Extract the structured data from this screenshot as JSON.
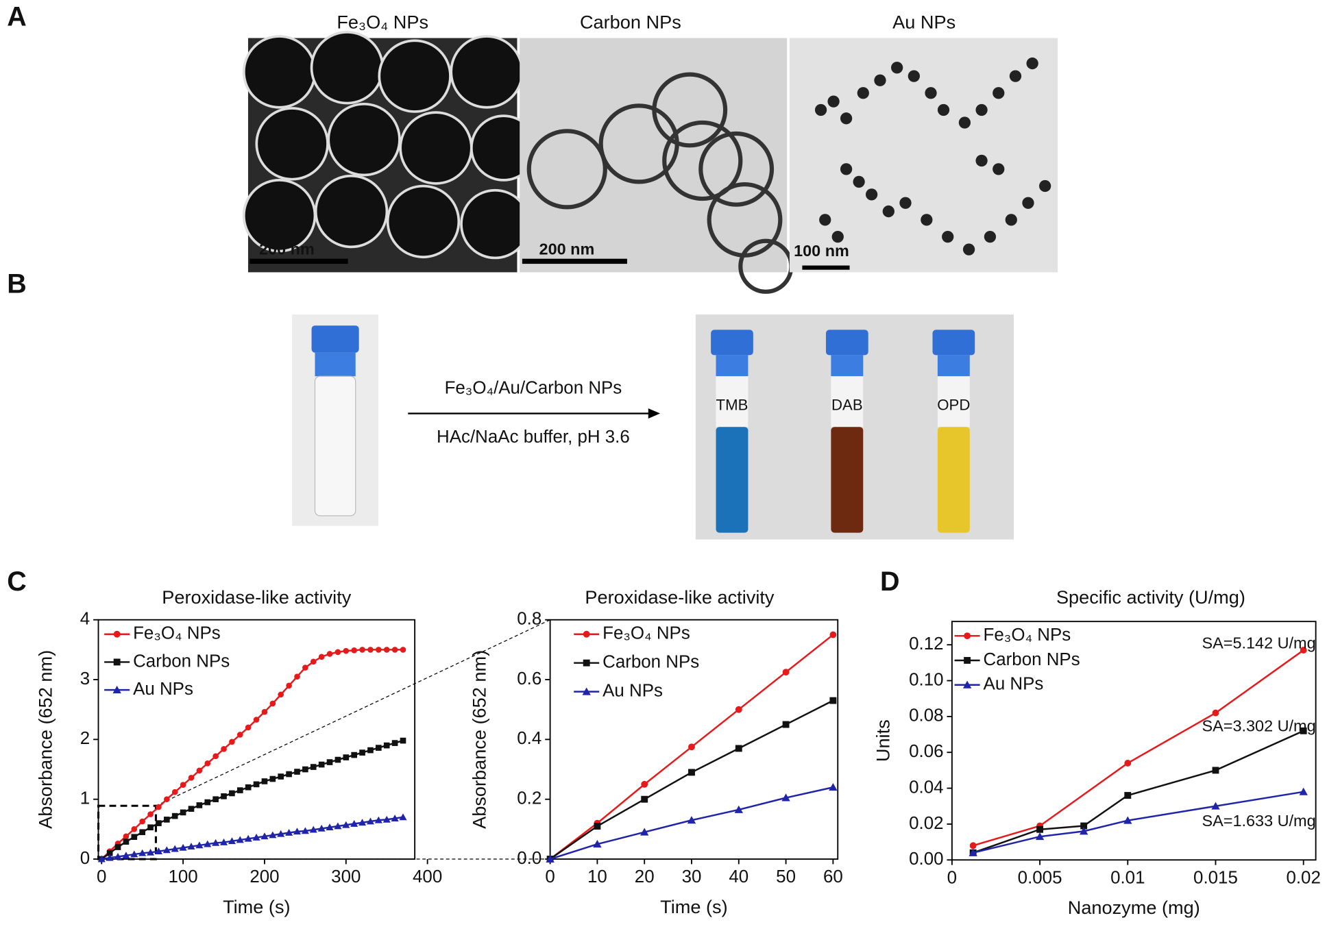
{
  "panel_labels": [
    "A",
    "B",
    "C",
    "D"
  ],
  "tem_images": [
    {
      "title": "Fe₃O₄ NPs",
      "scale_bar": "200 nm"
    },
    {
      "title": "Carbon NPs",
      "scale_bar": "200 nm"
    },
    {
      "title": "Au NPs",
      "scale_bar": "100 nm"
    }
  ],
  "reaction": {
    "reagent": "Fe₃O₄/Au/Carbon NPs",
    "condition": "HAc/NaAc buffer, pH 3.6",
    "tubes": [
      "TMB",
      "DAB",
      "OPD"
    ]
  },
  "chart_data": [
    {
      "type": "line",
      "title": "Peroxidase-like  activity",
      "x_label": "Time (s)",
      "y_label": "Absorbance (652 nm)",
      "xlim": [
        -4,
        400
      ],
      "ylim": [
        0,
        4
      ],
      "xticks": [
        0,
        100,
        200,
        300,
        400
      ],
      "yticks": [
        0,
        1,
        2,
        3,
        4
      ],
      "x": [
        0,
        10,
        20,
        30,
        40,
        50,
        60,
        70,
        80,
        90,
        100,
        110,
        120,
        130,
        140,
        150,
        160,
        170,
        180,
        190,
        200,
        210,
        220,
        230,
        240,
        250,
        260,
        270,
        280,
        290,
        300,
        310,
        320,
        330,
        340,
        350,
        360,
        370
      ],
      "series": [
        {
          "name": "Fe₃O₄ NPs",
          "color": "#e8191b",
          "marker": "circle",
          "values": [
            0,
            0.13,
            0.26,
            0.38,
            0.5,
            0.63,
            0.75,
            0.87,
            1.0,
            1.12,
            1.24,
            1.36,
            1.48,
            1.6,
            1.72,
            1.84,
            1.96,
            2.08,
            2.2,
            2.33,
            2.46,
            2.6,
            2.75,
            2.9,
            3.05,
            3.2,
            3.3,
            3.38,
            3.43,
            3.46,
            3.48,
            3.49,
            3.5,
            3.5,
            3.5,
            3.5,
            3.5,
            3.5
          ]
        },
        {
          "name": "Carbon NPs",
          "color": "#111111",
          "marker": "square",
          "values": [
            0,
            0.1,
            0.2,
            0.29,
            0.37,
            0.45,
            0.53,
            0.6,
            0.66,
            0.72,
            0.78,
            0.84,
            0.9,
            0.95,
            1.0,
            1.05,
            1.1,
            1.15,
            1.2,
            1.25,
            1.3,
            1.34,
            1.38,
            1.42,
            1.46,
            1.5,
            1.54,
            1.58,
            1.62,
            1.66,
            1.7,
            1.74,
            1.78,
            1.82,
            1.86,
            1.9,
            1.94,
            1.98
          ]
        },
        {
          "name": "Au NPs",
          "color": "#1f24a8",
          "marker": "triangle",
          "values": [
            0,
            0.02,
            0.04,
            0.06,
            0.08,
            0.1,
            0.11,
            0.13,
            0.15,
            0.17,
            0.19,
            0.21,
            0.23,
            0.25,
            0.27,
            0.28,
            0.3,
            0.32,
            0.34,
            0.36,
            0.38,
            0.4,
            0.42,
            0.44,
            0.46,
            0.47,
            0.49,
            0.51,
            0.53,
            0.55,
            0.57,
            0.59,
            0.61,
            0.63,
            0.65,
            0.66,
            0.68,
            0.7
          ]
        }
      ]
    },
    {
      "type": "line",
      "title": "Peroxidase-like  activity",
      "x_label": "Time (s)",
      "y_label": "Absorbance (652 nm)",
      "xlim": [
        0,
        61
      ],
      "ylim": [
        0,
        0.8
      ],
      "xticks": [
        0,
        10,
        20,
        30,
        40,
        50,
        60
      ],
      "yticks": [
        {
          "value": 0,
          "label": "0.0"
        },
        0.2,
        0.4,
        0.6,
        0.8
      ],
      "x": [
        0,
        10,
        20,
        30,
        40,
        50,
        60
      ],
      "series": [
        {
          "name": "Fe₃O₄ NPs",
          "color": "#e8191b",
          "marker": "circle",
          "values": [
            0,
            0.12,
            0.25,
            0.375,
            0.5,
            0.625,
            0.75
          ]
        },
        {
          "name": "Carbon NPs",
          "color": "#111111",
          "marker": "square",
          "values": [
            0,
            0.11,
            0.2,
            0.29,
            0.37,
            0.45,
            0.53
          ]
        },
        {
          "name": "Au NPs",
          "color": "#1f24a8",
          "marker": "triangle",
          "values": [
            0,
            0.05,
            0.09,
            0.13,
            0.165,
            0.205,
            0.24
          ]
        }
      ]
    },
    {
      "type": "line",
      "title": "Specific activity (U/mg)",
      "x_label": "Nanozyme (mg)",
      "y_label": "Units",
      "xlim": [
        0,
        0.0207
      ],
      "ylim": [
        0,
        0.133
      ],
      "xticks": [
        0,
        0.005,
        0.01,
        0.015,
        0.02
      ],
      "yticks": [
        {
          "value": 0,
          "label": "0.00"
        },
        {
          "value": 0.02,
          "label": "0.02"
        },
        {
          "value": 0.04,
          "label": "0.04"
        },
        {
          "value": 0.06,
          "label": "0.06"
        },
        {
          "value": 0.08,
          "label": "0.08"
        },
        {
          "value": 0.1,
          "label": "0.10"
        },
        {
          "value": 0.12,
          "label": "0.12"
        }
      ],
      "annotations": [
        "SA=5.142 U/mg",
        "SA=3.302 U/mg",
        "SA=1.633 U/mg"
      ],
      "series": [
        {
          "name": "Fe₃O₄ NPs",
          "color": "#e8191b",
          "marker": "circle",
          "x": [
            0.0012,
            0.005,
            0.01,
            0.015,
            0.02
          ],
          "values": [
            0.008,
            0.019,
            0.054,
            0.082,
            0.117
          ]
        },
        {
          "name": "Carbon NPs",
          "color": "#111111",
          "marker": "square",
          "x": [
            0.0012,
            0.005,
            0.0075,
            0.01,
            0.015,
            0.02
          ],
          "values": [
            0.004,
            0.017,
            0.019,
            0.036,
            0.05,
            0.072
          ]
        },
        {
          "name": "Au NPs",
          "color": "#1f24a8",
          "marker": "triangle",
          "x": [
            0.0012,
            0.005,
            0.0075,
            0.01,
            0.015,
            0.02
          ],
          "values": [
            0.004,
            0.013,
            0.016,
            0.022,
            0.03,
            0.038
          ]
        }
      ]
    }
  ]
}
